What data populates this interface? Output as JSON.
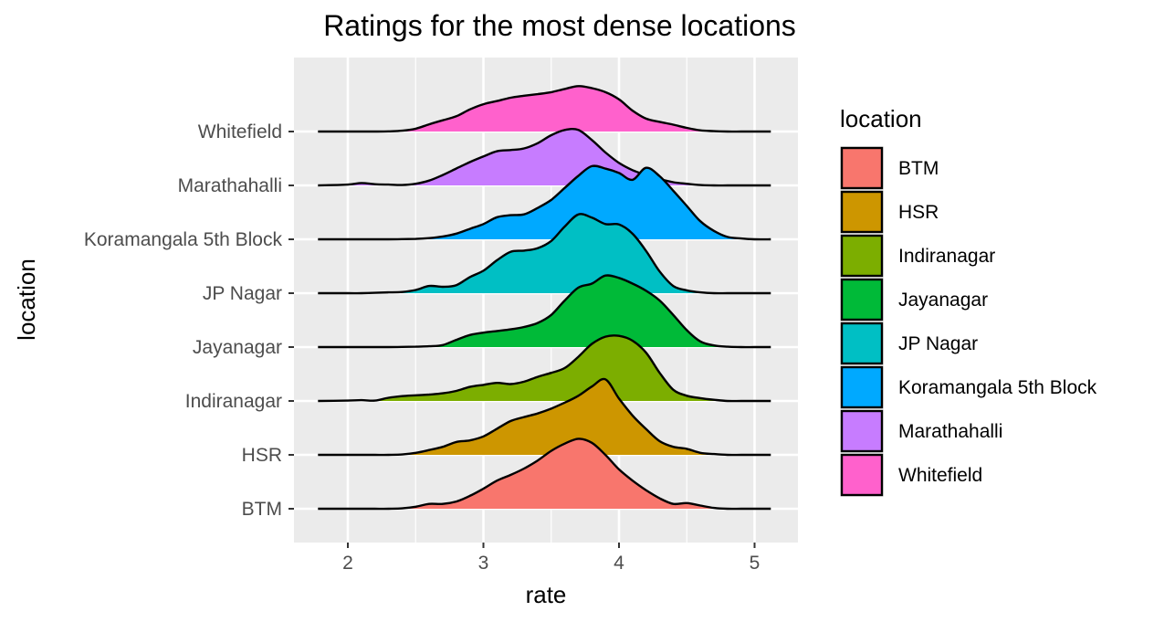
{
  "chart_data": {
    "type": "ridgeline",
    "title": "Ratings for the most dense locations",
    "xlabel": "rate",
    "ylabel": "location",
    "xlim": [
      1.63,
      5.33
    ],
    "x_ticks": [
      2,
      3,
      4,
      5
    ],
    "grid": true,
    "legend_position": "right",
    "legend_title": "location",
    "density_x": [
      1.78,
      2.0,
      2.1,
      2.2,
      2.3,
      2.4,
      2.5,
      2.6,
      2.7,
      2.8,
      2.9,
      3.0,
      3.1,
      3.2,
      3.3,
      3.4,
      3.5,
      3.6,
      3.7,
      3.8,
      3.9,
      4.0,
      4.1,
      4.2,
      4.3,
      4.4,
      4.5,
      4.6,
      4.7,
      4.8,
      4.9,
      5.0,
      5.12
    ],
    "series": [
      {
        "name": "Whitefield",
        "color": "#FF61CC",
        "density": [
          0,
          0,
          0,
          0,
          0.005,
          0.02,
          0.07,
          0.18,
          0.28,
          0.38,
          0.55,
          0.68,
          0.76,
          0.84,
          0.89,
          0.93,
          0.98,
          1.06,
          1.13,
          1.08,
          0.98,
          0.8,
          0.52,
          0.32,
          0.24,
          0.17,
          0.09,
          0.03,
          0.01,
          0,
          0,
          0,
          0
        ]
      },
      {
        "name": "Marathahalli",
        "color": "#C77CFF",
        "density": [
          0,
          0.02,
          0.06,
          0.03,
          0.02,
          0.01,
          0.04,
          0.12,
          0.26,
          0.42,
          0.58,
          0.72,
          0.85,
          0.88,
          0.92,
          1.05,
          1.25,
          1.38,
          1.38,
          1.13,
          0.82,
          0.56,
          0.38,
          0.26,
          0.16,
          0.08,
          0.04,
          0.01,
          0,
          0,
          0,
          0,
          0
        ]
      },
      {
        "name": "Koramangala 5th Block",
        "color": "#00A9FF",
        "density": [
          0,
          0,
          0,
          0,
          0,
          0.005,
          0.01,
          0.03,
          0.07,
          0.14,
          0.26,
          0.38,
          0.55,
          0.6,
          0.62,
          0.78,
          0.98,
          1.28,
          1.58,
          1.82,
          1.76,
          1.65,
          1.48,
          1.78,
          1.57,
          1.21,
          0.83,
          0.45,
          0.21,
          0.06,
          0.02,
          0,
          0
        ]
      },
      {
        "name": "JP Nagar",
        "color": "#00BFC4",
        "density": [
          0,
          0,
          0,
          0.01,
          0.02,
          0.03,
          0.08,
          0.18,
          0.16,
          0.2,
          0.4,
          0.56,
          0.82,
          1.03,
          1.06,
          1.12,
          1.3,
          1.66,
          1.96,
          1.88,
          1.72,
          1.71,
          1.48,
          1.05,
          0.54,
          0.18,
          0.07,
          0.02,
          0,
          0,
          0,
          0,
          0
        ]
      },
      {
        "name": "Jayanagar",
        "color": "#00BA38",
        "density": [
          0,
          0,
          0,
          0,
          0,
          0.005,
          0.01,
          0.02,
          0.05,
          0.18,
          0.3,
          0.36,
          0.4,
          0.44,
          0.5,
          0.6,
          0.8,
          1.16,
          1.48,
          1.58,
          1.78,
          1.72,
          1.58,
          1.4,
          1.16,
          0.8,
          0.42,
          0.14,
          0.04,
          0.01,
          0,
          0,
          0
        ]
      },
      {
        "name": "Indiranagar",
        "color": "#7CAE00",
        "density": [
          0,
          0.01,
          0.02,
          0.01,
          0.08,
          0.12,
          0.14,
          0.16,
          0.19,
          0.25,
          0.35,
          0.4,
          0.45,
          0.42,
          0.48,
          0.6,
          0.7,
          0.82,
          1.1,
          1.42,
          1.6,
          1.62,
          1.5,
          1.2,
          0.7,
          0.28,
          0.13,
          0.07,
          0.03,
          0,
          0,
          0,
          0
        ]
      },
      {
        "name": "HSR",
        "color": "#CD9600",
        "density": [
          0,
          0,
          0,
          0,
          0,
          0.01,
          0.05,
          0.12,
          0.2,
          0.32,
          0.36,
          0.46,
          0.65,
          0.84,
          0.94,
          1.03,
          1.15,
          1.3,
          1.47,
          1.7,
          1.88,
          1.4,
          0.98,
          0.64,
          0.34,
          0.2,
          0.15,
          0.05,
          0.02,
          0,
          0,
          0,
          0
        ]
      },
      {
        "name": "BTM",
        "color": "#F8766D",
        "density": [
          0,
          0,
          0,
          0,
          0,
          0.01,
          0.05,
          0.12,
          0.12,
          0.18,
          0.32,
          0.5,
          0.7,
          0.84,
          1.0,
          1.2,
          1.44,
          1.62,
          1.74,
          1.64,
          1.34,
          0.98,
          0.7,
          0.46,
          0.26,
          0.12,
          0.14,
          0.08,
          0.02,
          0,
          0,
          0,
          0
        ]
      }
    ],
    "legend_order": [
      "BTM",
      "HSR",
      "Indiranagar",
      "Jayanagar",
      "JP Nagar",
      "Koramangala 5th Block",
      "Marathahalli",
      "Whitefield"
    ]
  }
}
